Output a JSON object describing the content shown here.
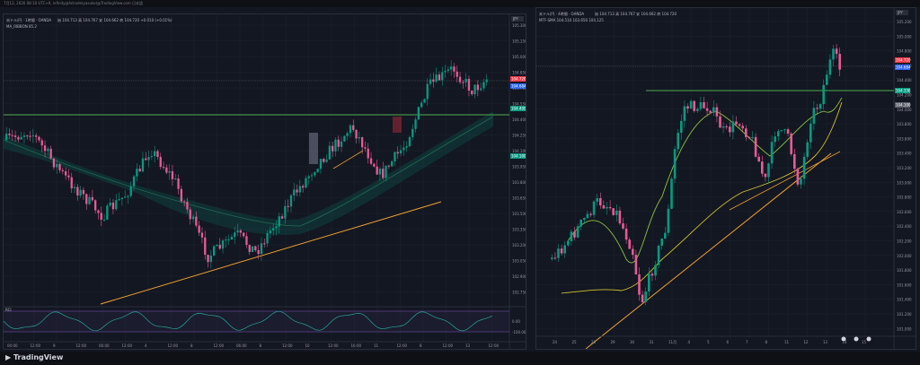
{
  "app": {
    "header_text": "7月12, 2026 08:10 UTC+9,  infinity@fxtrade(yasuko)@TradingView.com 日本語",
    "brand": "TradingView"
  },
  "left_panel": {
    "symbol_box": "JPY",
    "title": "米ドル/円 · 1時間 · OANDA",
    "ohlc": "始 104.713 高 104.767 安 104.662 終 104.720 +0.010 (+0.01%)",
    "ma_legend": "MA_RIBBON 85.2",
    "oscillator_label": "RCI",
    "price_ticks": [
      "105.300",
      "105.150",
      "105.000",
      "104.850",
      "104.700",
      "104.550",
      "104.400",
      "104.250",
      "104.100",
      "103.950",
      "103.800",
      "103.650",
      "103.500",
      "103.350",
      "103.200",
      "103.050",
      "102.900",
      "102.750"
    ],
    "osc_ticks": [
      "0.00",
      "-100.00"
    ],
    "time_ticks": [
      "00:00",
      "12:00",
      "9",
      "12:00",
      "06:00",
      "12:00",
      "4",
      "12:00",
      "8",
      "12:00",
      "06:00",
      "8",
      "12:00",
      "10",
      "12:00",
      "16:00",
      "11",
      "12:00",
      "8",
      "12:00",
      "13",
      "12:00"
    ],
    "badges": [
      {
        "text": "104.720",
        "color": "#f23645"
      },
      {
        "text": "104.684",
        "color": "#2962ff"
      },
      {
        "text": "104.400",
        "color": "#089981"
      },
      {
        "text": "104.100",
        "color": "#089981"
      }
    ]
  },
  "right_panel": {
    "symbol_box": "JPY",
    "title": "米ドル/円 · 4時間 · OANDA",
    "ohlc": "始 104.713 高 104.767 安 104.662 終 104.720",
    "ma_legend": "MTF-SMA 104.510 103.656 104.125",
    "price_ticks": [
      "105.200",
      "105.000",
      "104.800",
      "104.600",
      "104.400",
      "104.200",
      "104.000",
      "103.800",
      "103.600",
      "103.400",
      "103.200",
      "103.000",
      "102.800",
      "102.600",
      "102.400",
      "102.200",
      "102.000",
      "101.800",
      "101.600",
      "101.400",
      "101.200",
      "101.000"
    ],
    "time_ticks": [
      "24",
      "25",
      "28",
      "29",
      "30",
      "31",
      "11月",
      "4",
      "5",
      "6",
      "7",
      "8",
      "11",
      "12",
      "13",
      "14",
      "15"
    ],
    "badges": [
      {
        "text": "104.720",
        "color": "#f23645"
      },
      {
        "text": "104.684",
        "color": "#2962ff"
      },
      {
        "text": "104.336",
        "color": "#089981"
      },
      {
        "text": "104.100",
        "color": "#5d606b"
      }
    ]
  },
  "colors": {
    "up": "#089981",
    "down": "#f23645",
    "pink": "#e85b94",
    "sma": "#8cc63f",
    "trend": "#f0a030",
    "support": "#4caf50"
  },
  "chart_data": {
    "type": "line",
    "title": "米ドル/円",
    "series": [
      {
        "name": "1時間",
        "values": [
          103.9,
          103.6,
          103.3,
          103.1,
          103.5,
          103.7,
          104.0,
          104.2,
          103.8,
          104.3,
          105.0,
          104.7
        ]
      },
      {
        "name": "4時間",
        "values": [
          101.7,
          101.9,
          102.8,
          102.2,
          103.4,
          103.8,
          103.5,
          103.9,
          103.1,
          103.6,
          104.4,
          104.9
        ]
      }
    ],
    "xlabel": "",
    "ylabel": ""
  }
}
